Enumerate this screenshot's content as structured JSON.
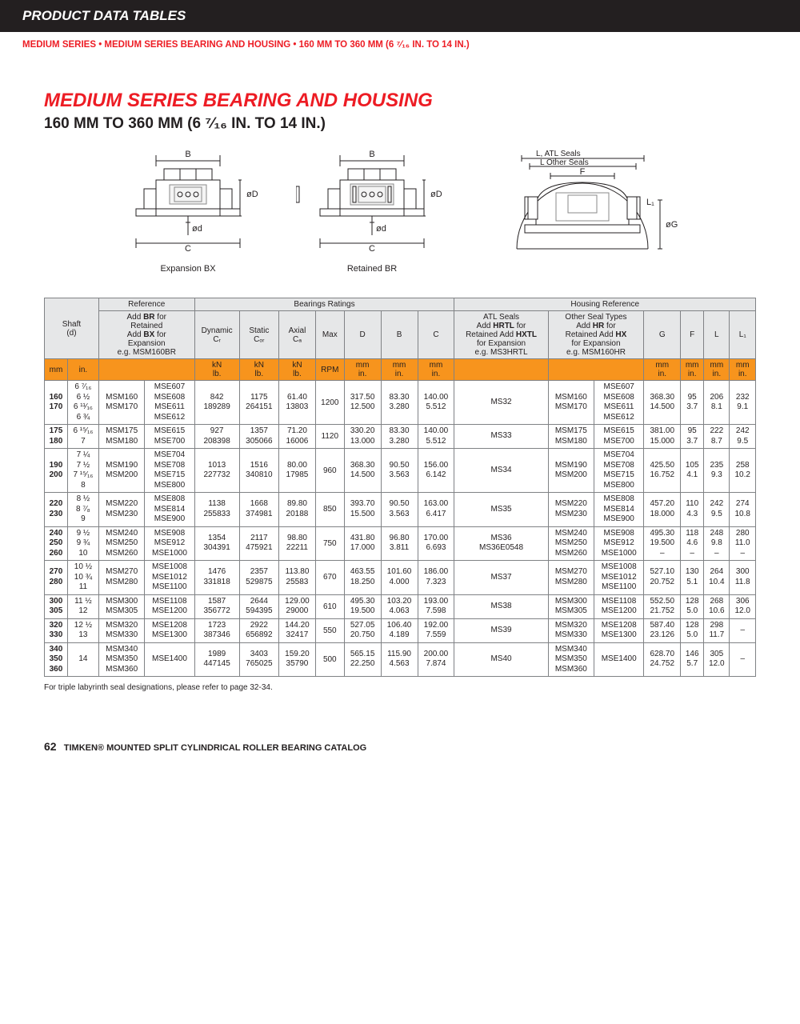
{
  "page": {
    "header_bar": "PRODUCT DATA TABLES",
    "subheader": "MEDIUM SERIES • MEDIUM SERIES BEARING AND HOUSING • 160 MM TO 360 MM (6 ⁷⁄₁₆ IN. TO 14 IN.)",
    "title_main": "MEDIUM SERIES BEARING AND HOUSING",
    "title_sub": "160 MM TO 360 MM (6 ⁷⁄₁₆ IN. TO 14 IN.)",
    "footnote": "For triple labyrinth seal designations, please refer to page 32-34.",
    "page_number": "62",
    "footer_text": "TIMKEN® MOUNTED SPLIT CYLINDRICAL ROLLER BEARING CATALOG"
  },
  "diagrams": {
    "d1_label": "Expansion BX",
    "d2_label": "Retained  BR",
    "dim_B": "B",
    "dim_C": "C",
    "dim_oD": "øD",
    "dim_od": "ød",
    "dim_L_ATL": "L, ATL Seals",
    "dim_L_other": "L Other Seals",
    "dim_F": "F",
    "dim_L1": "L₁",
    "dim_oG": "øG"
  },
  "colors": {
    "brand_red": "#ed1c24",
    "brand_orange": "#f7941d",
    "gray_bg": "#e6e7e8",
    "border": "#808285",
    "black": "#231f20"
  },
  "table": {
    "top_headers": {
      "reference": "Reference",
      "bearings_ratings": "Bearings Ratings",
      "housing_ref": "Housing Reference"
    },
    "headers": {
      "shaft": "Shaft\n(d)",
      "ref_note_html": "Add <b>BR</b> for<br>Retained<br>Add <b>BX</b> for<br>Expansion<br>e.g. MSM160BR",
      "dynamic": "Dynamic",
      "dynamic_sub": "Cᵣ",
      "static": "Static",
      "static_sub": "Cₒᵣ",
      "axial": "Axial",
      "axial_sub": "Cₐ",
      "max": "Max",
      "D": "D",
      "B": "B",
      "C": "C",
      "atl_seals": "ATL Seals",
      "atl_note_html": "Add <b>HRTL</b> for<br>Retained Add <b>HXTL</b><br>for Expansion<br>e.g. MS3HRTL",
      "other_seals": "Other Seal Types",
      "other_note_html": "Add <b>HR</b> for<br>Retained Add <b>HX</b><br>for Expansion<br>e.g. MSM160HR",
      "G": "G",
      "F": "F",
      "L": "L",
      "L1": "L₁"
    },
    "units": {
      "mm": "mm",
      "in": "in.",
      "kn_lb": "kN\nlb.",
      "rpm": "RPM",
      "mm_in": "mm\nin."
    },
    "rows": [
      {
        "shaft_mm": [
          "160",
          "170"
        ],
        "shaft_in": [
          "6 ⁷⁄₁₆",
          "6 ½",
          "6 ¹¹⁄₁₆",
          "6 ¾"
        ],
        "ref1": [
          "MSM160",
          "MSM170"
        ],
        "ref2": [
          "MSE607",
          "MSE608",
          "MSE611",
          "MSE612"
        ],
        "dyn": [
          "842",
          "189289"
        ],
        "stat": [
          "1175",
          "264151"
        ],
        "ax": [
          "61.40",
          "13803"
        ],
        "rpm": "1200",
        "D": [
          "317.50",
          "12.500"
        ],
        "B": [
          "83.30",
          "3.280"
        ],
        "C": [
          "140.00",
          "5.512"
        ],
        "atl": [
          "MS32"
        ],
        "hous1": [
          "MSM160",
          "MSM170"
        ],
        "hous2": [
          "MSE607",
          "MSE608",
          "MSE611",
          "MSE612"
        ],
        "G": [
          "368.30",
          "14.500"
        ],
        "F": [
          "95",
          "3.7"
        ],
        "L": [
          "206",
          "8.1"
        ],
        "L1": [
          "232",
          "9.1"
        ]
      },
      {
        "shaft_mm": [
          "175",
          "180"
        ],
        "shaft_in": [
          "6 ¹⁵⁄₁₆",
          "7"
        ],
        "ref1": [
          "MSM175",
          "MSM180"
        ],
        "ref2": [
          "MSE615",
          "MSE700"
        ],
        "dyn": [
          "927",
          "208398"
        ],
        "stat": [
          "1357",
          "305066"
        ],
        "ax": [
          "71.20",
          "16006"
        ],
        "rpm": "1120",
        "D": [
          "330.20",
          "13.000"
        ],
        "B": [
          "83.30",
          "3.280"
        ],
        "C": [
          "140.00",
          "5.512"
        ],
        "atl": [
          "MS33"
        ],
        "hous1": [
          "MSM175",
          "MSM180"
        ],
        "hous2": [
          "MSE615",
          "MSE700"
        ],
        "G": [
          "381.00",
          "15.000"
        ],
        "F": [
          "95",
          "3.7"
        ],
        "L": [
          "222",
          "8.7"
        ],
        "L1": [
          "242",
          "9.5"
        ]
      },
      {
        "shaft_mm": [
          "190",
          "200"
        ],
        "shaft_in": [
          "7 ¼",
          "7 ½",
          "7 ¹⁵⁄₁₆",
          "8"
        ],
        "ref1": [
          "MSM190",
          "MSM200"
        ],
        "ref2": [
          "MSE704",
          "MSE708",
          "MSE715",
          "MSE800"
        ],
        "dyn": [
          "1013",
          "227732"
        ],
        "stat": [
          "1516",
          "340810"
        ],
        "ax": [
          "80.00",
          "17985"
        ],
        "rpm": "960",
        "D": [
          "368.30",
          "14.500"
        ],
        "B": [
          "90.50",
          "3.563"
        ],
        "C": [
          "156.00",
          "6.142"
        ],
        "atl": [
          "MS34"
        ],
        "hous1": [
          "MSM190",
          "MSM200"
        ],
        "hous2": [
          "MSE704",
          "MSE708",
          "MSE715",
          "MSE800"
        ],
        "G": [
          "425.50",
          "16.752"
        ],
        "F": [
          "105",
          "4.1"
        ],
        "L": [
          "235",
          "9.3"
        ],
        "L1": [
          "258",
          "10.2"
        ]
      },
      {
        "shaft_mm": [
          "220",
          "230"
        ],
        "shaft_in": [
          "8 ½",
          "8 ⁷⁄₈",
          "9"
        ],
        "ref1": [
          "MSM220",
          "MSM230"
        ],
        "ref2": [
          "MSE808",
          "MSE814",
          "MSE900"
        ],
        "dyn": [
          "1138",
          "255833"
        ],
        "stat": [
          "1668",
          "374981"
        ],
        "ax": [
          "89.80",
          "20188"
        ],
        "rpm": "850",
        "D": [
          "393.70",
          "15.500"
        ],
        "B": [
          "90.50",
          "3.563"
        ],
        "C": [
          "163.00",
          "6.417"
        ],
        "atl": [
          "MS35"
        ],
        "hous1": [
          "MSM220",
          "MSM230"
        ],
        "hous2": [
          "MSE808",
          "MSE814",
          "MSE900"
        ],
        "G": [
          "457.20",
          "18.000"
        ],
        "F": [
          "110",
          "4.3"
        ],
        "L": [
          "242",
          "9.5"
        ],
        "L1": [
          "274",
          "10.8"
        ]
      },
      {
        "shaft_mm": [
          "240",
          "250",
          "260"
        ],
        "shaft_in": [
          "9 ½",
          "9 ¾",
          "10"
        ],
        "ref1": [
          "MSM240",
          "MSM250",
          "MSM260"
        ],
        "ref2": [
          "MSE908",
          "MSE912",
          "MSE1000"
        ],
        "dyn": [
          "1354",
          "304391"
        ],
        "stat": [
          "2117",
          "475921"
        ],
        "ax": [
          "98.80",
          "22211"
        ],
        "rpm": "750",
        "D": [
          "431.80",
          "17.000"
        ],
        "B": [
          "96.80",
          "3.811"
        ],
        "C": [
          "170.00",
          "6.693"
        ],
        "atl": [
          "MS36",
          "MS36E0548"
        ],
        "hous1": [
          "MSM240",
          "MSM250",
          "MSM260"
        ],
        "hous2": [
          "MSE908",
          "MSE912",
          "MSE1000"
        ],
        "G": [
          "495.30",
          "19.500",
          "–"
        ],
        "F": [
          "118",
          "4.6",
          "–"
        ],
        "L": [
          "248",
          "9.8",
          "–"
        ],
        "L1": [
          "280",
          "11.0",
          "–"
        ],
        "split_last": true
      },
      {
        "shaft_mm": [
          "270",
          "280"
        ],
        "shaft_in": [
          "10 ½",
          "10 ¾",
          "11"
        ],
        "ref1": [
          "MSM270",
          "MSM280"
        ],
        "ref2": [
          "MSE1008",
          "MSE1012",
          "MSE1100"
        ],
        "dyn": [
          "1476",
          "331818"
        ],
        "stat": [
          "2357",
          "529875"
        ],
        "ax": [
          "113.80",
          "25583"
        ],
        "rpm": "670",
        "D": [
          "463.55",
          "18.250"
        ],
        "B": [
          "101.60",
          "4.000"
        ],
        "C": [
          "186.00",
          "7.323"
        ],
        "atl": [
          "MS37"
        ],
        "hous1": [
          "MSM270",
          "MSM280"
        ],
        "hous2": [
          "MSE1008",
          "MSE1012",
          "MSE1100"
        ],
        "G": [
          "527.10",
          "20.752"
        ],
        "F": [
          "130",
          "5.1"
        ],
        "L": [
          "264",
          "10.4"
        ],
        "L1": [
          "300",
          "11.8"
        ]
      },
      {
        "shaft_mm": [
          "300",
          "305"
        ],
        "shaft_in": [
          "11 ½",
          "12"
        ],
        "ref1": [
          "MSM300",
          "MSM305"
        ],
        "ref2": [
          "MSE1108",
          "MSE1200"
        ],
        "dyn": [
          "1587",
          "356772"
        ],
        "stat": [
          "2644",
          "594395"
        ],
        "ax": [
          "129.00",
          "29000"
        ],
        "rpm": "610",
        "D": [
          "495.30",
          "19.500"
        ],
        "B": [
          "103.20",
          "4.063"
        ],
        "C": [
          "193.00",
          "7.598"
        ],
        "atl": [
          "MS38"
        ],
        "hous1": [
          "MSM300",
          "MSM305"
        ],
        "hous2": [
          "MSE1108",
          "MSE1200"
        ],
        "G": [
          "552.50",
          "21.752"
        ],
        "F": [
          "128",
          "5.0"
        ],
        "L": [
          "268",
          "10.6"
        ],
        "L1": [
          "306",
          "12.0"
        ]
      },
      {
        "shaft_mm": [
          "320",
          "330"
        ],
        "shaft_in": [
          "12 ½",
          "13"
        ],
        "ref1": [
          "MSM320",
          "MSM330"
        ],
        "ref2": [
          "MSE1208",
          "MSE1300"
        ],
        "dyn": [
          "1723",
          "387346"
        ],
        "stat": [
          "2922",
          "656892"
        ],
        "ax": [
          "144.20",
          "32417"
        ],
        "rpm": "550",
        "D": [
          "527.05",
          "20.750"
        ],
        "B": [
          "106.40",
          "4.189"
        ],
        "C": [
          "192.00",
          "7.559"
        ],
        "atl": [
          "MS39"
        ],
        "hous1": [
          "MSM320",
          "MSM330"
        ],
        "hous2": [
          "MSE1208",
          "MSE1300"
        ],
        "G": [
          "587.40",
          "23.126"
        ],
        "F": [
          "128",
          "5.0"
        ],
        "L": [
          "298",
          "11.7"
        ],
        "L1": [
          "–"
        ]
      },
      {
        "shaft_mm": [
          "340",
          "350",
          "360"
        ],
        "shaft_in": [
          "14"
        ],
        "ref1": [
          "MSM340",
          "MSM350",
          "MSM360"
        ],
        "ref2": [
          "MSE1400"
        ],
        "dyn": [
          "1989",
          "447145"
        ],
        "stat": [
          "3403",
          "765025"
        ],
        "ax": [
          "159.20",
          "35790"
        ],
        "rpm": "500",
        "D": [
          "565.15",
          "22.250"
        ],
        "B": [
          "115.90",
          "4.563"
        ],
        "C": [
          "200.00",
          "7.874"
        ],
        "atl": [
          "MS40"
        ],
        "hous1": [
          "MSM340",
          "MSM350",
          "MSM360"
        ],
        "hous2": [
          "MSE1400"
        ],
        "G": [
          "628.70",
          "24.752"
        ],
        "F": [
          "146",
          "5.7"
        ],
        "L": [
          "305",
          "12.0"
        ],
        "L1": [
          "–"
        ]
      }
    ]
  }
}
